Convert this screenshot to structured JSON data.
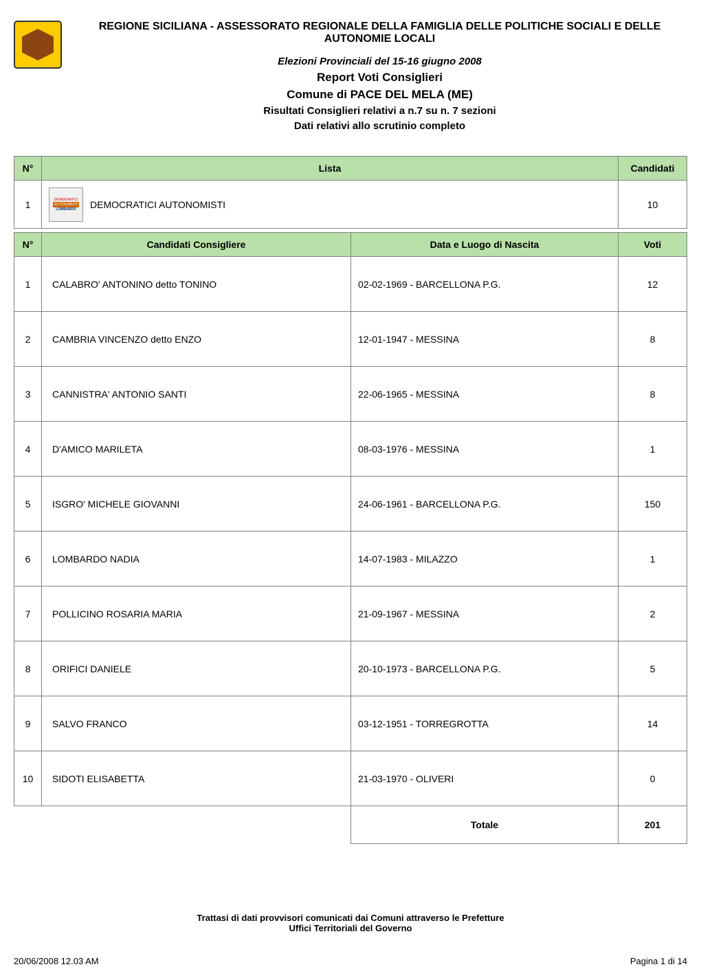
{
  "header": {
    "org_title": "REGIONE SICILIANA - ASSESSORATO REGIONALE DELLA FAMIGLIA DELLE POLITICHE SOCIALI E DELLE AUTONOMIE LOCALI",
    "election_title": "Elezioni Provinciali del 15-16 giugno 2008",
    "report_title": "Report Voti Consiglieri",
    "comune_title": "Comune di PACE DEL MELA (ME)",
    "results_info": "Risultati Consiglieri relativi a n.7 su n. 7 sezioni",
    "data_info": "Dati relativi allo scrutinio completo"
  },
  "colors": {
    "header_bg": "#b8e0a8",
    "border": "#808080",
    "logo_bg": "#ffcc00",
    "text": "#000000"
  },
  "lista_table": {
    "headers": {
      "n": "N°",
      "lista": "Lista",
      "candidati": "Candidati"
    },
    "row": {
      "num": "1",
      "name": "DEMOCRATICI AUTONOMISTI",
      "count": "10",
      "icon_text_top": "DEMOCRATICI",
      "icon_text_mid": "AUTONOMISTI",
      "icon_text_bottom": "LOMBARDO"
    }
  },
  "candidati_table": {
    "headers": {
      "n": "N°",
      "name": "Candidati Consigliere",
      "birth": "Data e Luogo di Nascita",
      "voti": "Voti"
    },
    "rows": [
      {
        "num": "1",
        "name": "CALABRO' ANTONINO detto TONINO",
        "birth": "02-02-1969 - BARCELLONA P.G.",
        "voti": "12"
      },
      {
        "num": "2",
        "name": "CAMBRIA VINCENZO detto ENZO",
        "birth": "12-01-1947 - MESSINA",
        "voti": "8"
      },
      {
        "num": "3",
        "name": "CANNISTRA' ANTONIO SANTI",
        "birth": "22-06-1965 - MESSINA",
        "voti": "8"
      },
      {
        "num": "4",
        "name": "D'AMICO MARILETA",
        "birth": "08-03-1976 - MESSINA",
        "voti": "1"
      },
      {
        "num": "5",
        "name": "ISGRO' MICHELE GIOVANNI",
        "birth": "24-06-1961 - BARCELLONA P.G.",
        "voti": "150"
      },
      {
        "num": "6",
        "name": "LOMBARDO NADIA",
        "birth": "14-07-1983 - MILAZZO",
        "voti": "1"
      },
      {
        "num": "7",
        "name": "POLLICINO ROSARIA MARIA",
        "birth": "21-09-1967 - MESSINA",
        "voti": "2"
      },
      {
        "num": "8",
        "name": "ORIFICI DANIELE",
        "birth": "20-10-1973 - BARCELLONA P.G.",
        "voti": "5"
      },
      {
        "num": "9",
        "name": "SALVO FRANCO",
        "birth": "03-12-1951 - TORREGROTTA",
        "voti": "14"
      },
      {
        "num": "10",
        "name": "SIDOTI ELISABETTA",
        "birth": "21-03-1970 - OLIVERI",
        "voti": "0"
      }
    ],
    "total": {
      "label": "Totale",
      "value": "201"
    }
  },
  "footer": {
    "note_line1": "Trattasi di dati provvisori comunicati dai Comuni attraverso le Prefetture",
    "note_line2": "Uffici Territoriali del Governo",
    "timestamp": "20/06/2008 12.03 AM",
    "page_info": "Pagina 1 di 14"
  }
}
